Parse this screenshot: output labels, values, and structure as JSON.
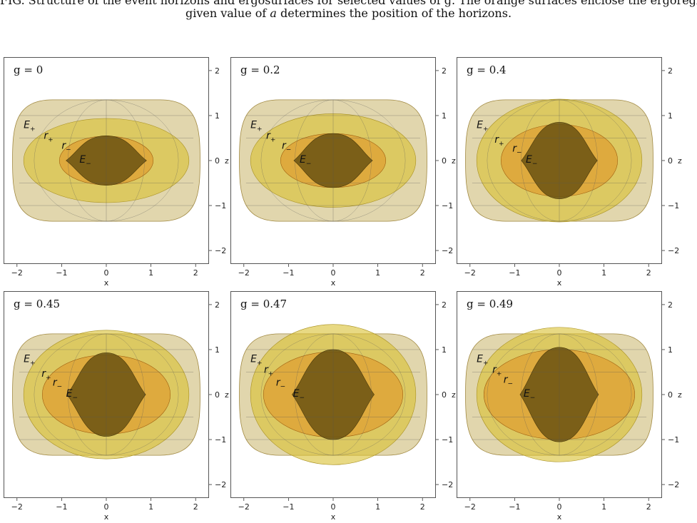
{
  "caption": {
    "line1": "FIG. Structure of the event horizons and ergosurfaces for selected values of g. The orange surfaces enclose the ergoregion; for a given value of a determines the position of the horizons.",
    "line2_pre": "given value of ",
    "line2_var": "a",
    "line2_post": " determines the position of the horizons."
  },
  "labels": {
    "e_plus": "E",
    "e_plus_sub": "+",
    "r_plus": "r",
    "r_plus_sub": "+",
    "r_minus": "r",
    "r_minus_sub": "−",
    "e_minus": "E",
    "e_minus_sub": "−"
  },
  "axes": {
    "xlabel": "x",
    "zlabel": "z",
    "xticks": [
      "−2",
      "−1",
      "0",
      "1",
      "2"
    ],
    "zticks": [
      "2",
      "1",
      "0",
      "−1",
      "−2"
    ],
    "xlim": [
      -2.3,
      2.3
    ],
    "zlim": [
      -2.3,
      2.3
    ]
  },
  "colors": {
    "outer_ergo": "#c9b46a",
    "horizon_outer": "#d9c030",
    "horizon_inner": "#e09020",
    "inner_ergo": "#6a5212",
    "frame": "#555555"
  },
  "panels": [
    {
      "title": "g = 0"
    },
    {
      "title": "g = 0.2"
    },
    {
      "title": "g = 0.4"
    },
    {
      "title": "g = 0.45"
    },
    {
      "title": "g = 0.47"
    },
    {
      "title": "g = 0.49"
    }
  ]
}
